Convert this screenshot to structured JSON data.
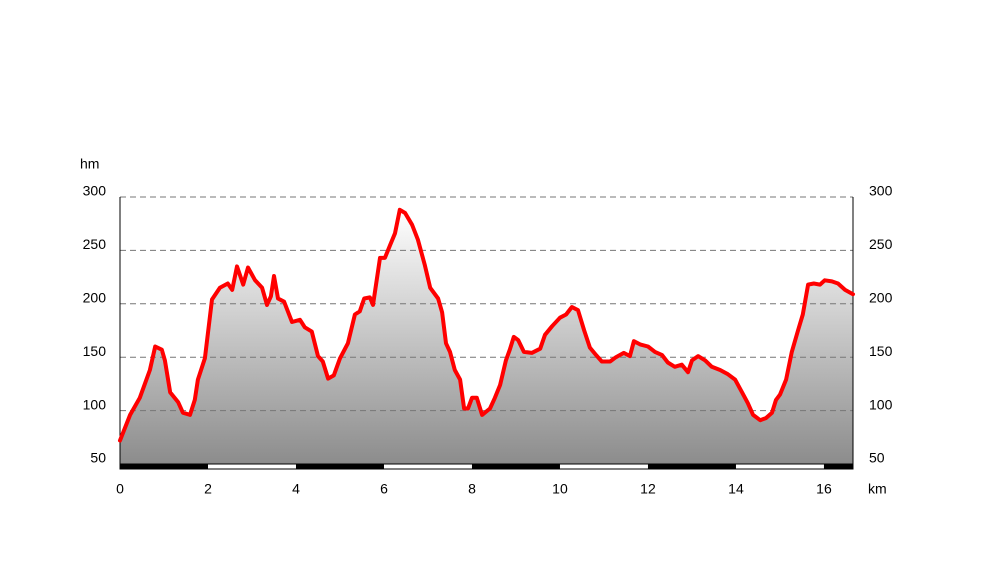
{
  "chart_data": {
    "type": "area",
    "y_label": "hm",
    "x_label": "km",
    "color": "#ff0000",
    "xlim": [
      0,
      16.66
    ],
    "ylim": [
      50,
      300
    ],
    "xticks": [
      0,
      2,
      4,
      6,
      8,
      10,
      12,
      14,
      16
    ],
    "yticks": [
      50,
      100,
      150,
      200,
      250,
      300
    ],
    "grid": true,
    "x": [
      0,
      0.23,
      0.45,
      0.68,
      0.8,
      0.95,
      1.02,
      1.14,
      1.32,
      1.43,
      1.59,
      1.7,
      1.77,
      1.93,
      2.09,
      2.27,
      2.45,
      2.55,
      2.66,
      2.8,
      2.91,
      3.07,
      3.23,
      3.34,
      3.43,
      3.5,
      3.59,
      3.73,
      3.91,
      4.09,
      4.2,
      4.36,
      4.5,
      4.61,
      4.73,
      4.86,
      5.0,
      5.18,
      5.34,
      5.45,
      5.55,
      5.68,
      5.75,
      5.91,
      6.02,
      6.14,
      6.25,
      6.36,
      6.48,
      6.64,
      6.77,
      6.93,
      7.05,
      7.23,
      7.32,
      7.41,
      7.5,
      7.61,
      7.73,
      7.82,
      7.91,
      8.0,
      8.11,
      8.23,
      8.41,
      8.52,
      8.64,
      8.77,
      8.86,
      8.95,
      9.05,
      9.18,
      9.36,
      9.55,
      9.66,
      9.82,
      10.0,
      10.14,
      10.27,
      10.41,
      10.55,
      10.68,
      10.82,
      10.95,
      11.14,
      11.27,
      11.45,
      11.59,
      11.68,
      11.82,
      12.0,
      12.16,
      12.32,
      12.45,
      12.61,
      12.77,
      12.91,
      13.0,
      13.14,
      13.3,
      13.45,
      13.64,
      13.82,
      13.98,
      14.14,
      14.27,
      14.39,
      14.55,
      14.68,
      14.82,
      14.91,
      15.0,
      15.14,
      15.27,
      15.41,
      15.52,
      15.64,
      15.77,
      15.91,
      16.02,
      16.18,
      16.32,
      16.48,
      16.66
    ],
    "values": [
      72,
      96,
      112,
      138,
      160,
      157,
      147,
      117,
      108,
      98,
      96,
      110,
      129,
      149,
      204,
      215,
      219,
      213,
      235,
      218,
      234,
      222,
      215,
      199,
      207,
      226,
      205,
      202,
      183,
      185,
      178,
      174,
      151,
      146,
      130,
      133,
      149,
      163,
      190,
      193,
      205,
      206,
      199,
      243,
      243,
      255,
      266,
      288,
      285,
      274,
      260,
      236,
      215,
      205,
      192,
      163,
      155,
      138,
      129,
      102,
      102,
      112,
      112,
      96,
      102,
      112,
      124,
      147,
      157,
      169,
      166,
      155,
      154,
      158,
      171,
      179,
      187,
      190,
      197,
      194,
      175,
      159,
      152,
      146,
      146,
      150,
      154,
      151,
      165,
      162,
      160,
      155,
      152,
      145,
      141,
      143,
      136,
      147,
      151,
      147,
      141,
      138,
      134,
      129,
      117,
      107,
      96,
      91,
      93,
      98,
      110,
      115,
      129,
      155,
      175,
      190,
      218,
      219,
      218,
      222,
      221,
      219,
      213,
      209
    ]
  }
}
